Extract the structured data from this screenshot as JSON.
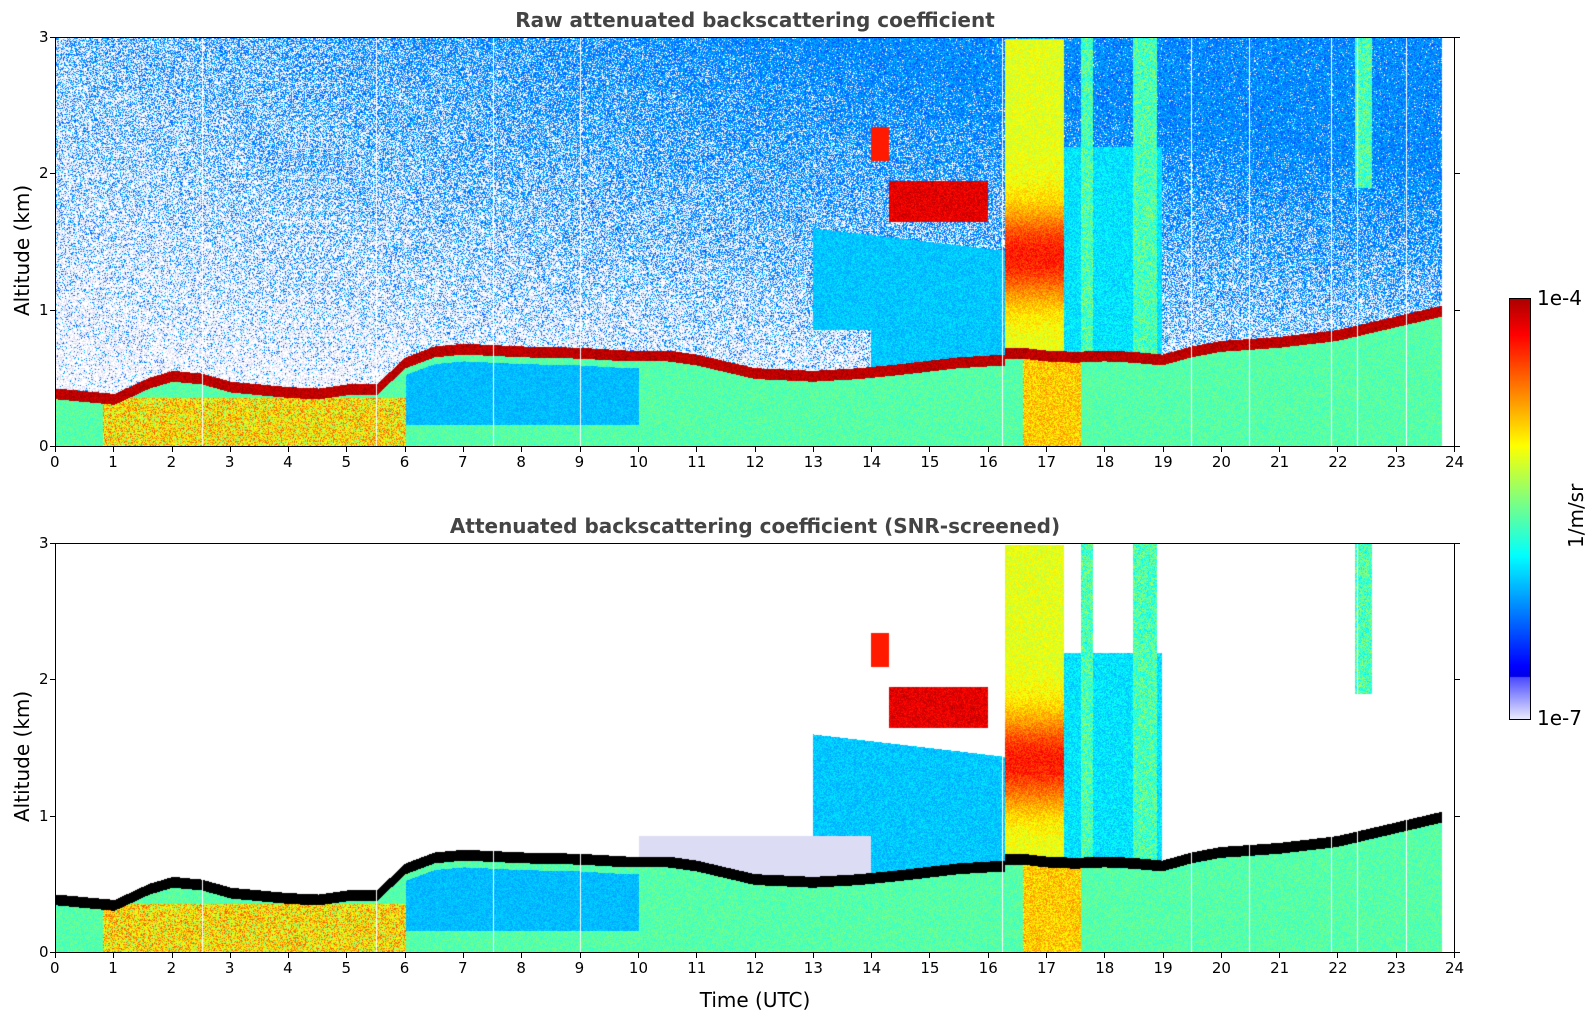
{
  "chart_data": [
    {
      "type": "heatmap",
      "title": "Raw attenuated backscattering coefficient",
      "xlabel": "",
      "ylabel": "Altitude (km)",
      "xlim": [
        0,
        24
      ],
      "ylim": [
        0,
        3
      ],
      "xticks": [
        "0",
        "1",
        "2",
        "3",
        "4",
        "5",
        "6",
        "7",
        "8",
        "9",
        "10",
        "11",
        "12",
        "13",
        "14",
        "15",
        "16",
        "17",
        "18",
        "19",
        "20",
        "21",
        "22",
        "23",
        "24"
      ],
      "yticks": [
        "0",
        "1",
        "2",
        "3"
      ],
      "colorscale": "jet",
      "screened": false,
      "layers": [
        {
          "name": "boundary-layer-top",
          "x": [
            0,
            1,
            1.6,
            2,
            3,
            4,
            5,
            5.5,
            6,
            6.5,
            7,
            8,
            9,
            9.8
          ],
          "y": [
            0.37,
            0.33,
            0.45,
            0.5,
            0.42,
            0.38,
            0.4,
            0.4,
            0.6,
            0.68,
            0.7,
            0.68,
            0.67,
            0.65
          ]
        },
        {
          "name": "low-cloud-layer",
          "x": [
            16.6,
            17,
            18,
            19,
            20,
            21,
            22,
            23,
            23.8
          ],
          "y": [
            0.67,
            0.65,
            0.65,
            0.64,
            0.72,
            0.75,
            0.8,
            0.9,
            0.98
          ]
        },
        {
          "name": "elevated-cloud",
          "x": [
            14,
            14.5,
            15,
            15.5,
            16
          ],
          "y": [
            2.3,
            1.7,
            1.8,
            1.7,
            1.8
          ]
        }
      ]
    },
    {
      "type": "heatmap",
      "title": "Attenuated backscattering coefficient (SNR-screened)",
      "xlabel": "Time (UTC)",
      "ylabel": "Altitude (km)",
      "xlim": [
        0,
        24
      ],
      "ylim": [
        0,
        3
      ],
      "xticks": [
        "0",
        "1",
        "2",
        "3",
        "4",
        "5",
        "6",
        "7",
        "8",
        "9",
        "10",
        "11",
        "12",
        "13",
        "14",
        "15",
        "16",
        "17",
        "18",
        "19",
        "20",
        "21",
        "22",
        "23",
        "24"
      ],
      "yticks": [
        "0",
        "1",
        "2",
        "3"
      ],
      "colorscale": "jet",
      "screened": true
    }
  ],
  "colorbar": {
    "max_label": "1e-4",
    "min_label": "1e-7",
    "unit_label": "1/m/sr"
  }
}
